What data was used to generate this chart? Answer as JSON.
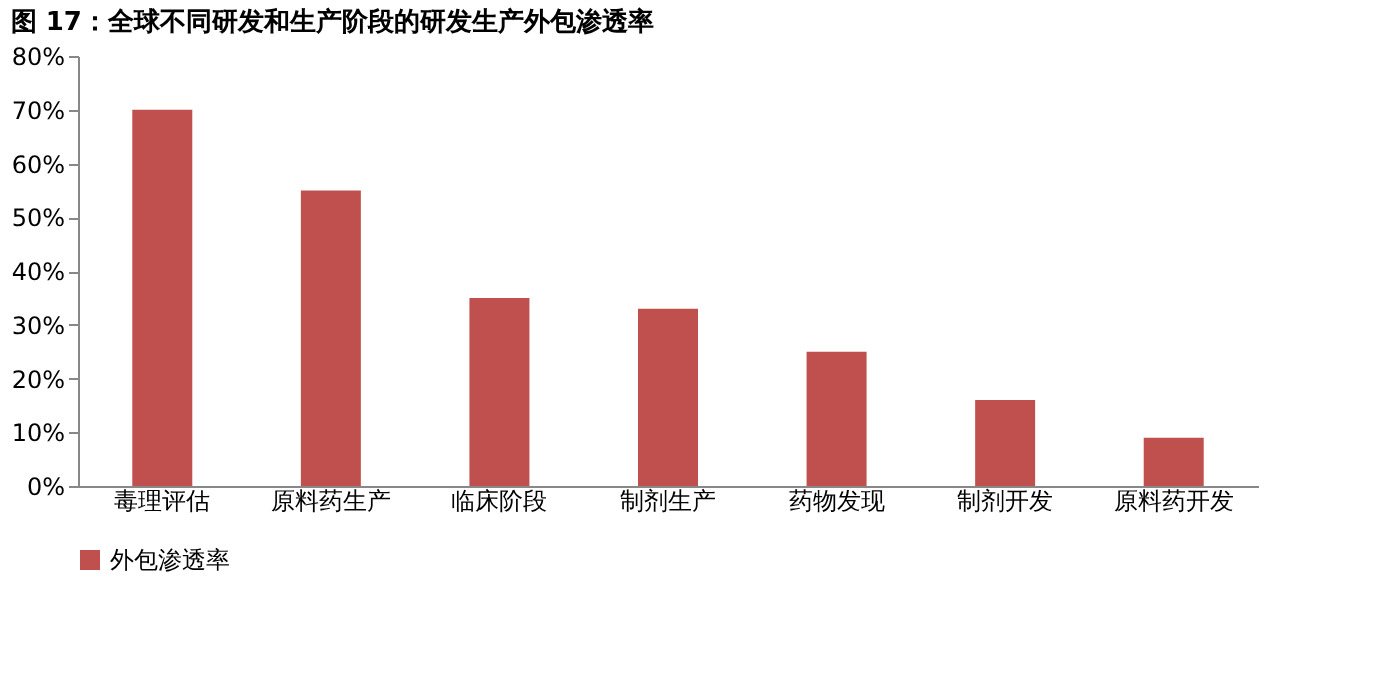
{
  "chart_data": {
    "type": "bar",
    "title": "图 17：全球不同研发和生产阶段的研发生产外包渗透率",
    "categories": [
      "毒理评估",
      "原料药生产",
      "临床阶段",
      "制剂生产",
      "药物发现",
      "制剂开发",
      "原料药开发"
    ],
    "series": [
      {
        "name": "外包渗透率",
        "color": "#c0504d",
        "values": [
          70,
          55,
          35,
          33,
          25,
          16,
          9
        ]
      }
    ],
    "ylim": [
      0,
      80
    ],
    "yticks": [
      {
        "value": 0,
        "label": "0%"
      },
      {
        "value": 10,
        "label": "10%"
      },
      {
        "value": 20,
        "label": "20%"
      },
      {
        "value": 30,
        "label": "30%"
      },
      {
        "value": 40,
        "label": "40%"
      },
      {
        "value": 50,
        "label": "50%"
      },
      {
        "value": 60,
        "label": "60%"
      },
      {
        "value": 70,
        "label": "70%"
      },
      {
        "value": 80,
        "label": "80%"
      }
    ],
    "grid": false,
    "legend": "bottom"
  }
}
